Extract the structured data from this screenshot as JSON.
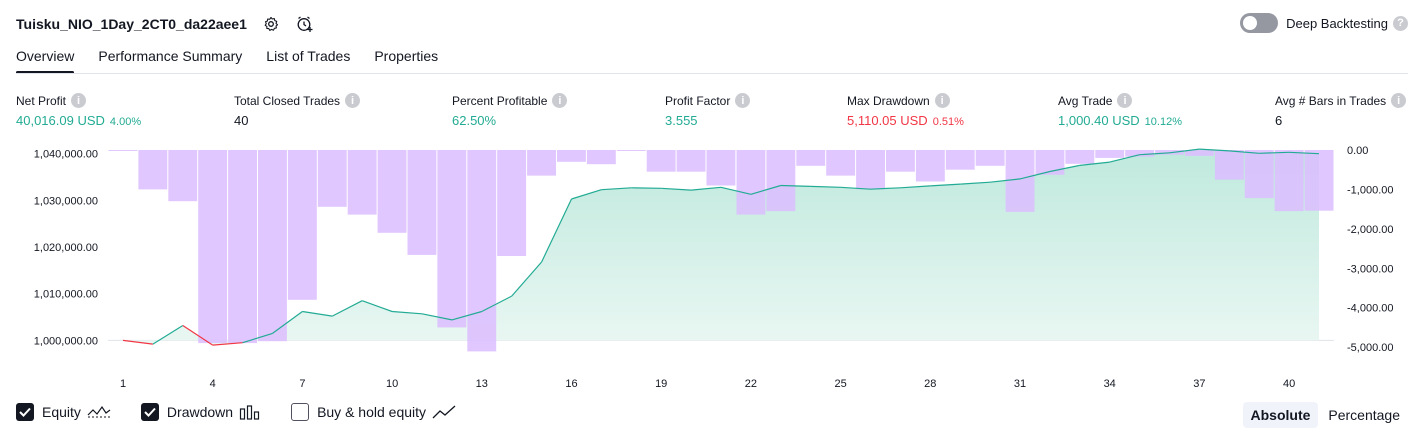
{
  "header": {
    "title": "Tuisku_NIO_1Day_2CT0_da22aee1",
    "deep_backtesting_label": "Deep Backtesting",
    "deep_backtesting_enabled": false
  },
  "tabs": [
    {
      "label": "Overview",
      "active": true
    },
    {
      "label": "Performance Summary",
      "active": false
    },
    {
      "label": "List of Trades",
      "active": false
    },
    {
      "label": "Properties",
      "active": false
    }
  ],
  "metrics": {
    "net_profit": {
      "label": "Net Profit",
      "value": "40,016.09 USD",
      "pct": "4.00%"
    },
    "total_closed_trades": {
      "label": "Total Closed Trades",
      "value": "40"
    },
    "percent_profitable": {
      "label": "Percent Profitable",
      "value": "62.50%"
    },
    "profit_factor": {
      "label": "Profit Factor",
      "value": "3.555"
    },
    "max_drawdown": {
      "label": "Max Drawdown",
      "value": "5,110.05 USD",
      "pct": "0.51%"
    },
    "avg_trade": {
      "label": "Avg Trade",
      "value": "1,000.40 USD",
      "pct": "10.12%"
    },
    "avg_bars": {
      "label": "Avg # Bars in Trades",
      "value": "6"
    }
  },
  "legend": {
    "equity_label": "Equity",
    "equity_checked": true,
    "drawdown_label": "Drawdown",
    "drawdown_checked": true,
    "buyhold_label": "Buy & hold equity",
    "buyhold_checked": false
  },
  "scale": {
    "absolute_label": "Absolute",
    "percentage_label": "Percentage",
    "selected": "Absolute"
  },
  "colors": {
    "profit_green": "#22ab94",
    "loss_red": "#f23645",
    "equity_line": "#22ab94",
    "equity_fill": "#d6f1ea",
    "drawdown_fill": "#dcbdff",
    "overlap_fill": "#b3b6e3"
  },
  "chart_data": {
    "type": "area",
    "x_ticks": [
      "1",
      "4",
      "7",
      "10",
      "13",
      "16",
      "19",
      "22",
      "25",
      "28",
      "31",
      "34",
      "37",
      "40"
    ],
    "left_axis": {
      "ticks": [
        "1,000,000.00",
        "1,010,000.00",
        "1,020,000.00",
        "1,030,000.00",
        "1,040,000.00"
      ],
      "tick_values": [
        1000000,
        1010000,
        1020000,
        1030000,
        1040000
      ],
      "range": [
        997300,
        1040800
      ]
    },
    "right_axis": {
      "ticks": [
        "0.00",
        "-1,000.00",
        "-2,000.00",
        "-3,000.00",
        "-4,000.00",
        "-5,000.00"
      ],
      "tick_values": [
        0,
        -1000,
        -2000,
        -3000,
        -4000,
        -5000
      ],
      "range": [
        -5150,
        0
      ]
    },
    "series": [
      {
        "name": "Equity",
        "x": [
          1,
          2,
          3,
          4,
          5,
          6,
          7,
          8,
          9,
          10,
          11,
          12,
          13,
          14,
          15,
          16,
          17,
          18,
          19,
          20,
          21,
          22,
          23,
          24,
          25,
          26,
          27,
          28,
          29,
          30,
          31,
          32,
          33,
          34,
          35,
          36,
          37,
          38,
          39,
          40,
          41
        ],
        "values": [
          1000000,
          999200,
          1003200,
          999000,
          999500,
          1001500,
          1006200,
          1005200,
          1008500,
          1006200,
          1005700,
          1004400,
          1006200,
          1009500,
          1016800,
          1030300,
          1032300,
          1032700,
          1032600,
          1032200,
          1032800,
          1031300,
          1033200,
          1033000,
          1032800,
          1032400,
          1032700,
          1033100,
          1033500,
          1033900,
          1034600,
          1036200,
          1037500,
          1038200,
          1039800,
          1040200,
          1041000,
          1040600,
          1040100,
          1040300,
          1040000
        ],
        "colors": [
          "red",
          "red",
          "green",
          "red",
          "red",
          "green",
          "green",
          "green",
          "green",
          "green",
          "green",
          "green",
          "green",
          "green",
          "green",
          "green",
          "green",
          "green",
          "green",
          "green",
          "green",
          "green",
          "green",
          "green",
          "green",
          "green",
          "green",
          "green",
          "green",
          "green",
          "green",
          "green",
          "green",
          "green",
          "green",
          "green",
          "green",
          "green",
          "green",
          "green",
          "green"
        ]
      },
      {
        "name": "Drawdown",
        "x": [
          1,
          2,
          3,
          4,
          5,
          6,
          7,
          8,
          9,
          10,
          11,
          12,
          13,
          14,
          15,
          16,
          17,
          18,
          19,
          20,
          21,
          22,
          23,
          24,
          25,
          26,
          27,
          28,
          29,
          30,
          31,
          32,
          33,
          34,
          35,
          36,
          37,
          38,
          39,
          40,
          41
        ],
        "values": [
          -20,
          -1000,
          -1300,
          -4900,
          -4900,
          -4850,
          -3800,
          -1440,
          -1640,
          -2100,
          -2660,
          -4500,
          -5110,
          -2690,
          -650,
          -300,
          -360,
          -20,
          -550,
          -550,
          -900,
          -1640,
          -1550,
          -400,
          -650,
          -1000,
          -550,
          -800,
          -500,
          -400,
          -1570,
          -630,
          -350,
          -200,
          -170,
          -120,
          -150,
          -750,
          -1220,
          -1550,
          -1540
        ]
      }
    ]
  }
}
